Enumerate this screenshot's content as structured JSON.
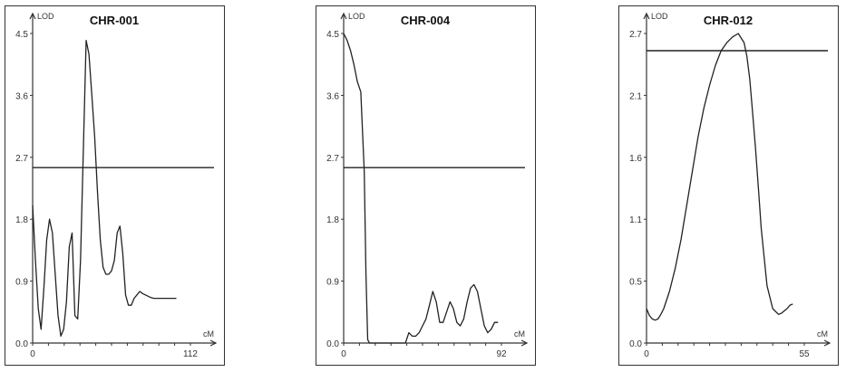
{
  "chart_data": [
    {
      "type": "line",
      "title": "CHR-001",
      "ylabel": "LOD",
      "xlabel": "cM",
      "ylim": [
        0,
        4.5
      ],
      "xlim": [
        0,
        112
      ],
      "yticks": [
        "0.0",
        "0.9",
        "1.8",
        "2.7",
        "3.6",
        "4.5"
      ],
      "xtick_labels": [
        "0",
        "112"
      ],
      "threshold": 2.55,
      "series": [
        {
          "x": [
            0,
            2,
            4,
            6,
            8,
            10,
            12,
            14,
            16,
            18,
            20,
            22,
            24,
            26,
            28,
            30,
            32,
            34,
            36,
            38,
            40,
            42,
            44,
            46,
            48,
            50,
            52,
            54,
            56,
            58,
            60,
            62,
            64,
            66,
            68,
            70,
            72,
            74,
            76,
            78,
            80,
            82,
            84,
            86,
            88,
            90,
            92,
            94,
            96,
            98,
            100,
            102
          ],
          "y": [
            2.0,
            1.2,
            0.5,
            0.2,
            0.8,
            1.5,
            1.8,
            1.6,
            1.0,
            0.4,
            0.1,
            0.2,
            0.6,
            1.4,
            1.6,
            0.4,
            0.35,
            1.2,
            2.8,
            4.4,
            4.2,
            3.6,
            3.0,
            2.2,
            1.5,
            1.1,
            1.0,
            1.0,
            1.05,
            1.2,
            1.6,
            1.7,
            1.3,
            0.7,
            0.55,
            0.55,
            0.65,
            0.7,
            0.75,
            0.72,
            0.7,
            0.68,
            0.66,
            0.65,
            0.65,
            0.65,
            0.65,
            0.65,
            0.65,
            0.65,
            0.65,
            0.65
          ]
        }
      ]
    },
    {
      "type": "line",
      "title": "CHR-004",
      "ylabel": "LOD",
      "xlabel": "cM",
      "ylim": [
        0,
        4.5
      ],
      "xlim": [
        0,
        92
      ],
      "yticks": [
        "0.0",
        "0.9",
        "1.8",
        "2.7",
        "3.6",
        "4.5"
      ],
      "xtick_labels": [
        "0",
        "92"
      ],
      "threshold": 2.55,
      "series": [
        {
          "x": [
            0,
            2,
            4,
            6,
            8,
            10,
            12,
            13,
            14,
            15,
            16,
            36,
            38,
            40,
            42,
            44,
            46,
            48,
            50,
            52,
            54,
            56,
            58,
            60,
            62,
            64,
            66,
            68,
            70,
            72,
            74,
            76,
            78,
            80,
            82,
            84,
            86,
            88,
            90
          ],
          "y": [
            4.5,
            4.4,
            4.25,
            4.05,
            3.8,
            3.65,
            2.5,
            1.0,
            0.05,
            0.0,
            0.0,
            0.0,
            0.15,
            0.1,
            0.1,
            0.15,
            0.25,
            0.35,
            0.55,
            0.75,
            0.6,
            0.3,
            0.3,
            0.45,
            0.6,
            0.5,
            0.3,
            0.25,
            0.35,
            0.6,
            0.8,
            0.85,
            0.75,
            0.5,
            0.25,
            0.15,
            0.2,
            0.3,
            0.3
          ]
        }
      ]
    },
    {
      "type": "line",
      "title": "CHR-012",
      "ylabel": "LOD",
      "xlabel": "cM",
      "ylim": [
        0,
        2.7
      ],
      "xlim": [
        0,
        55
      ],
      "yticks": [
        "0.0",
        "0.5",
        "1.1",
        "1.6",
        "2.1",
        "2.7"
      ],
      "xtick_labels": [
        "0",
        "55"
      ],
      "threshold": 2.55,
      "series": [
        {
          "x": [
            0,
            1,
            2,
            3,
            4,
            5,
            6,
            8,
            10,
            12,
            14,
            16,
            18,
            20,
            22,
            24,
            26,
            28,
            30,
            32,
            34,
            35,
            36,
            37,
            38,
            39,
            40,
            42,
            44,
            46,
            47,
            48,
            49,
            50,
            51
          ],
          "y": [
            0.3,
            0.24,
            0.21,
            0.2,
            0.21,
            0.25,
            0.3,
            0.45,
            0.65,
            0.9,
            1.2,
            1.5,
            1.8,
            2.05,
            2.25,
            2.42,
            2.55,
            2.62,
            2.67,
            2.7,
            2.62,
            2.5,
            2.3,
            2.0,
            1.7,
            1.35,
            1.0,
            0.5,
            0.3,
            0.25,
            0.26,
            0.28,
            0.3,
            0.33,
            0.34
          ]
        }
      ]
    }
  ]
}
